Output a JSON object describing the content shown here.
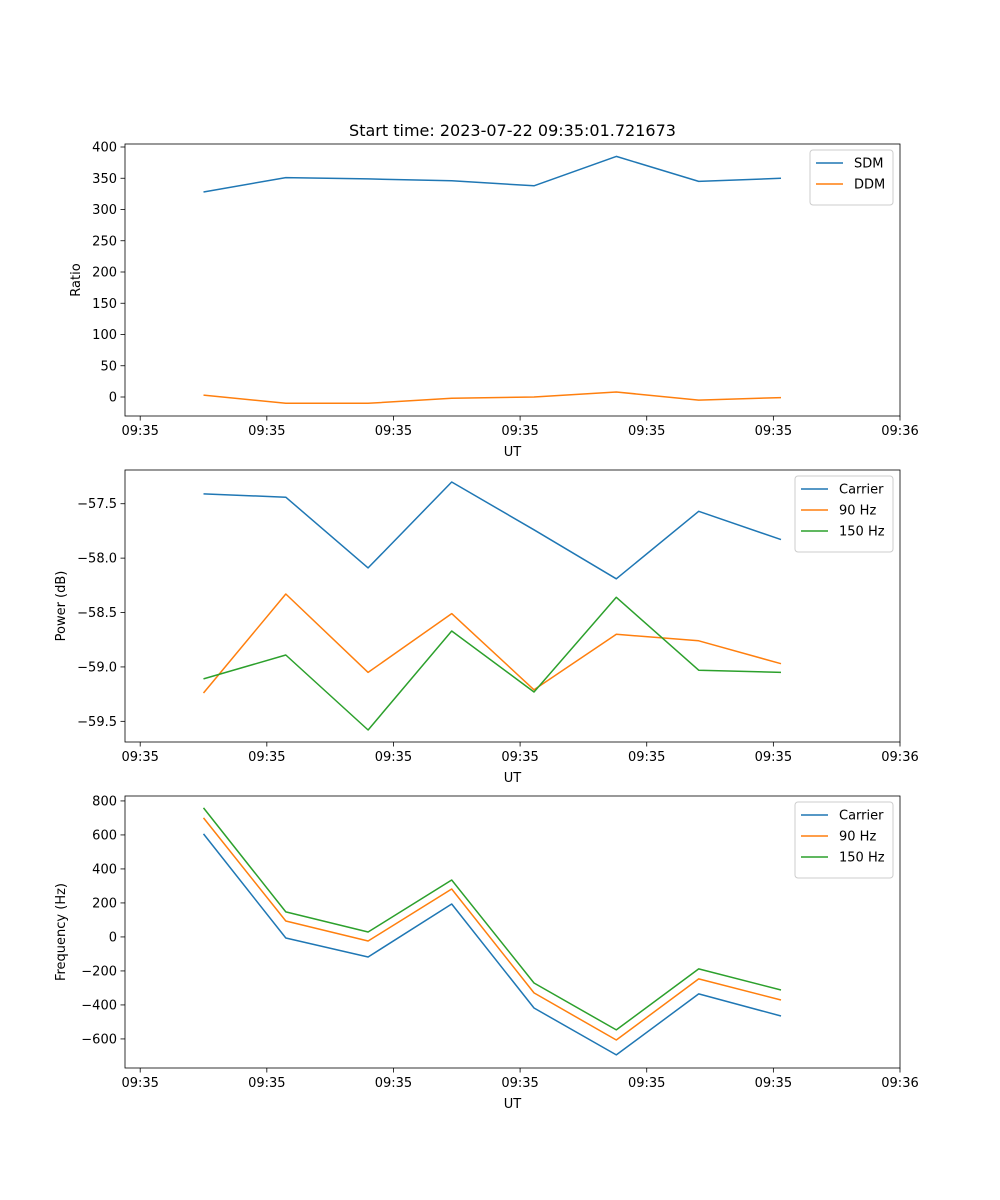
{
  "title": "Start time: 2023-07-22 09:35:01.721673",
  "colors": {
    "c0": "#1f77b4",
    "c1": "#ff7f0e",
    "c2": "#2ca02c"
  },
  "chart_data": [
    {
      "type": "line",
      "title": "Start time: 2023-07-22 09:35:01.721673",
      "xlabel": "UT",
      "ylabel": "Ratio",
      "x": [
        5.0,
        11.5,
        18.0,
        24.6,
        31.1,
        37.6,
        44.1,
        50.6
      ],
      "xlim": [
        -1.2,
        60.0
      ],
      "xticks": [
        0,
        10,
        20,
        30,
        40,
        50,
        60
      ],
      "xticklabels": [
        "09:35",
        "09:35",
        "09:35",
        "09:35",
        "09:35",
        "09:35",
        "09:36"
      ],
      "ylim": [
        -30.4,
        404.8
      ],
      "yticks": [
        0,
        50,
        100,
        150,
        200,
        250,
        300,
        350,
        400
      ],
      "yticklabels": [
        "0",
        "50",
        "100",
        "150",
        "200",
        "250",
        "300",
        "350",
        "400"
      ],
      "legend": "top-right",
      "series": [
        {
          "name": "SDM",
          "color": "#1f77b4",
          "values": [
            328,
            351,
            349,
            346,
            338,
            385,
            345,
            350
          ]
        },
        {
          "name": "DDM",
          "color": "#ff7f0e",
          "values": [
            3,
            -10,
            -10,
            -2,
            0,
            8,
            -5,
            -1
          ]
        }
      ]
    },
    {
      "type": "line",
      "xlabel": "UT",
      "ylabel": "Power (dB)",
      "x": [
        5.0,
        11.5,
        18.0,
        24.6,
        31.1,
        37.6,
        44.1,
        50.6
      ],
      "xlim": [
        -1.2,
        60.0
      ],
      "xticks": [
        0,
        10,
        20,
        30,
        40,
        50,
        60
      ],
      "xticklabels": [
        "09:35",
        "09:35",
        "09:35",
        "09:35",
        "09:35",
        "09:35",
        "09:36"
      ],
      "ylim": [
        -59.69,
        -57.19
      ],
      "yticks": [
        -59.5,
        -59.0,
        -58.5,
        -58.0,
        -57.5
      ],
      "yticklabels": [
        "−59.5",
        "−59.0",
        "−58.5",
        "−58.0",
        "−57.5"
      ],
      "legend": "top-right",
      "series": [
        {
          "name": "Carrier",
          "color": "#1f77b4",
          "values": [
            -57.41,
            -57.44,
            -58.09,
            -57.3,
            -57.74,
            -58.19,
            -57.57,
            -57.83
          ]
        },
        {
          "name": "90 Hz",
          "color": "#ff7f0e",
          "values": [
            -59.24,
            -58.33,
            -59.05,
            -58.51,
            -59.21,
            -58.7,
            -58.76,
            -58.97
          ]
        },
        {
          "name": "150 Hz",
          "color": "#2ca02c",
          "values": [
            -59.11,
            -58.89,
            -59.58,
            -58.67,
            -59.23,
            -58.36,
            -59.03,
            -59.05
          ]
        }
      ]
    },
    {
      "type": "line",
      "xlabel": "UT",
      "ylabel": "Frequency (Hz)",
      "x": [
        5.0,
        11.5,
        18.0,
        24.6,
        31.1,
        37.6,
        44.1,
        50.6
      ],
      "xlim": [
        -1.2,
        60.0
      ],
      "xticks": [
        0,
        10,
        20,
        30,
        40,
        50,
        60
      ],
      "xticklabels": [
        "09:35",
        "09:35",
        "09:35",
        "09:35",
        "09:35",
        "09:35",
        "09:36"
      ],
      "ylim": [
        -771,
        829
      ],
      "yticks": [
        -600,
        -400,
        -200,
        0,
        200,
        400,
        600,
        800
      ],
      "yticklabels": [
        "−600",
        "−400",
        "−200",
        "0",
        "200",
        "400",
        "600",
        "800"
      ],
      "legend": "top-right",
      "series": [
        {
          "name": "Carrier",
          "color": "#1f77b4",
          "values": [
            606,
            -6,
            -118,
            194,
            -418,
            -694,
            -335,
            -465
          ]
        },
        {
          "name": "90 Hz",
          "color": "#ff7f0e",
          "values": [
            700,
            94,
            -24,
            282,
            -329,
            -606,
            -247,
            -371
          ]
        },
        {
          "name": "150 Hz",
          "color": "#2ca02c",
          "values": [
            759,
            147,
            29,
            335,
            -271,
            -547,
            -188,
            -312
          ]
        }
      ]
    }
  ]
}
